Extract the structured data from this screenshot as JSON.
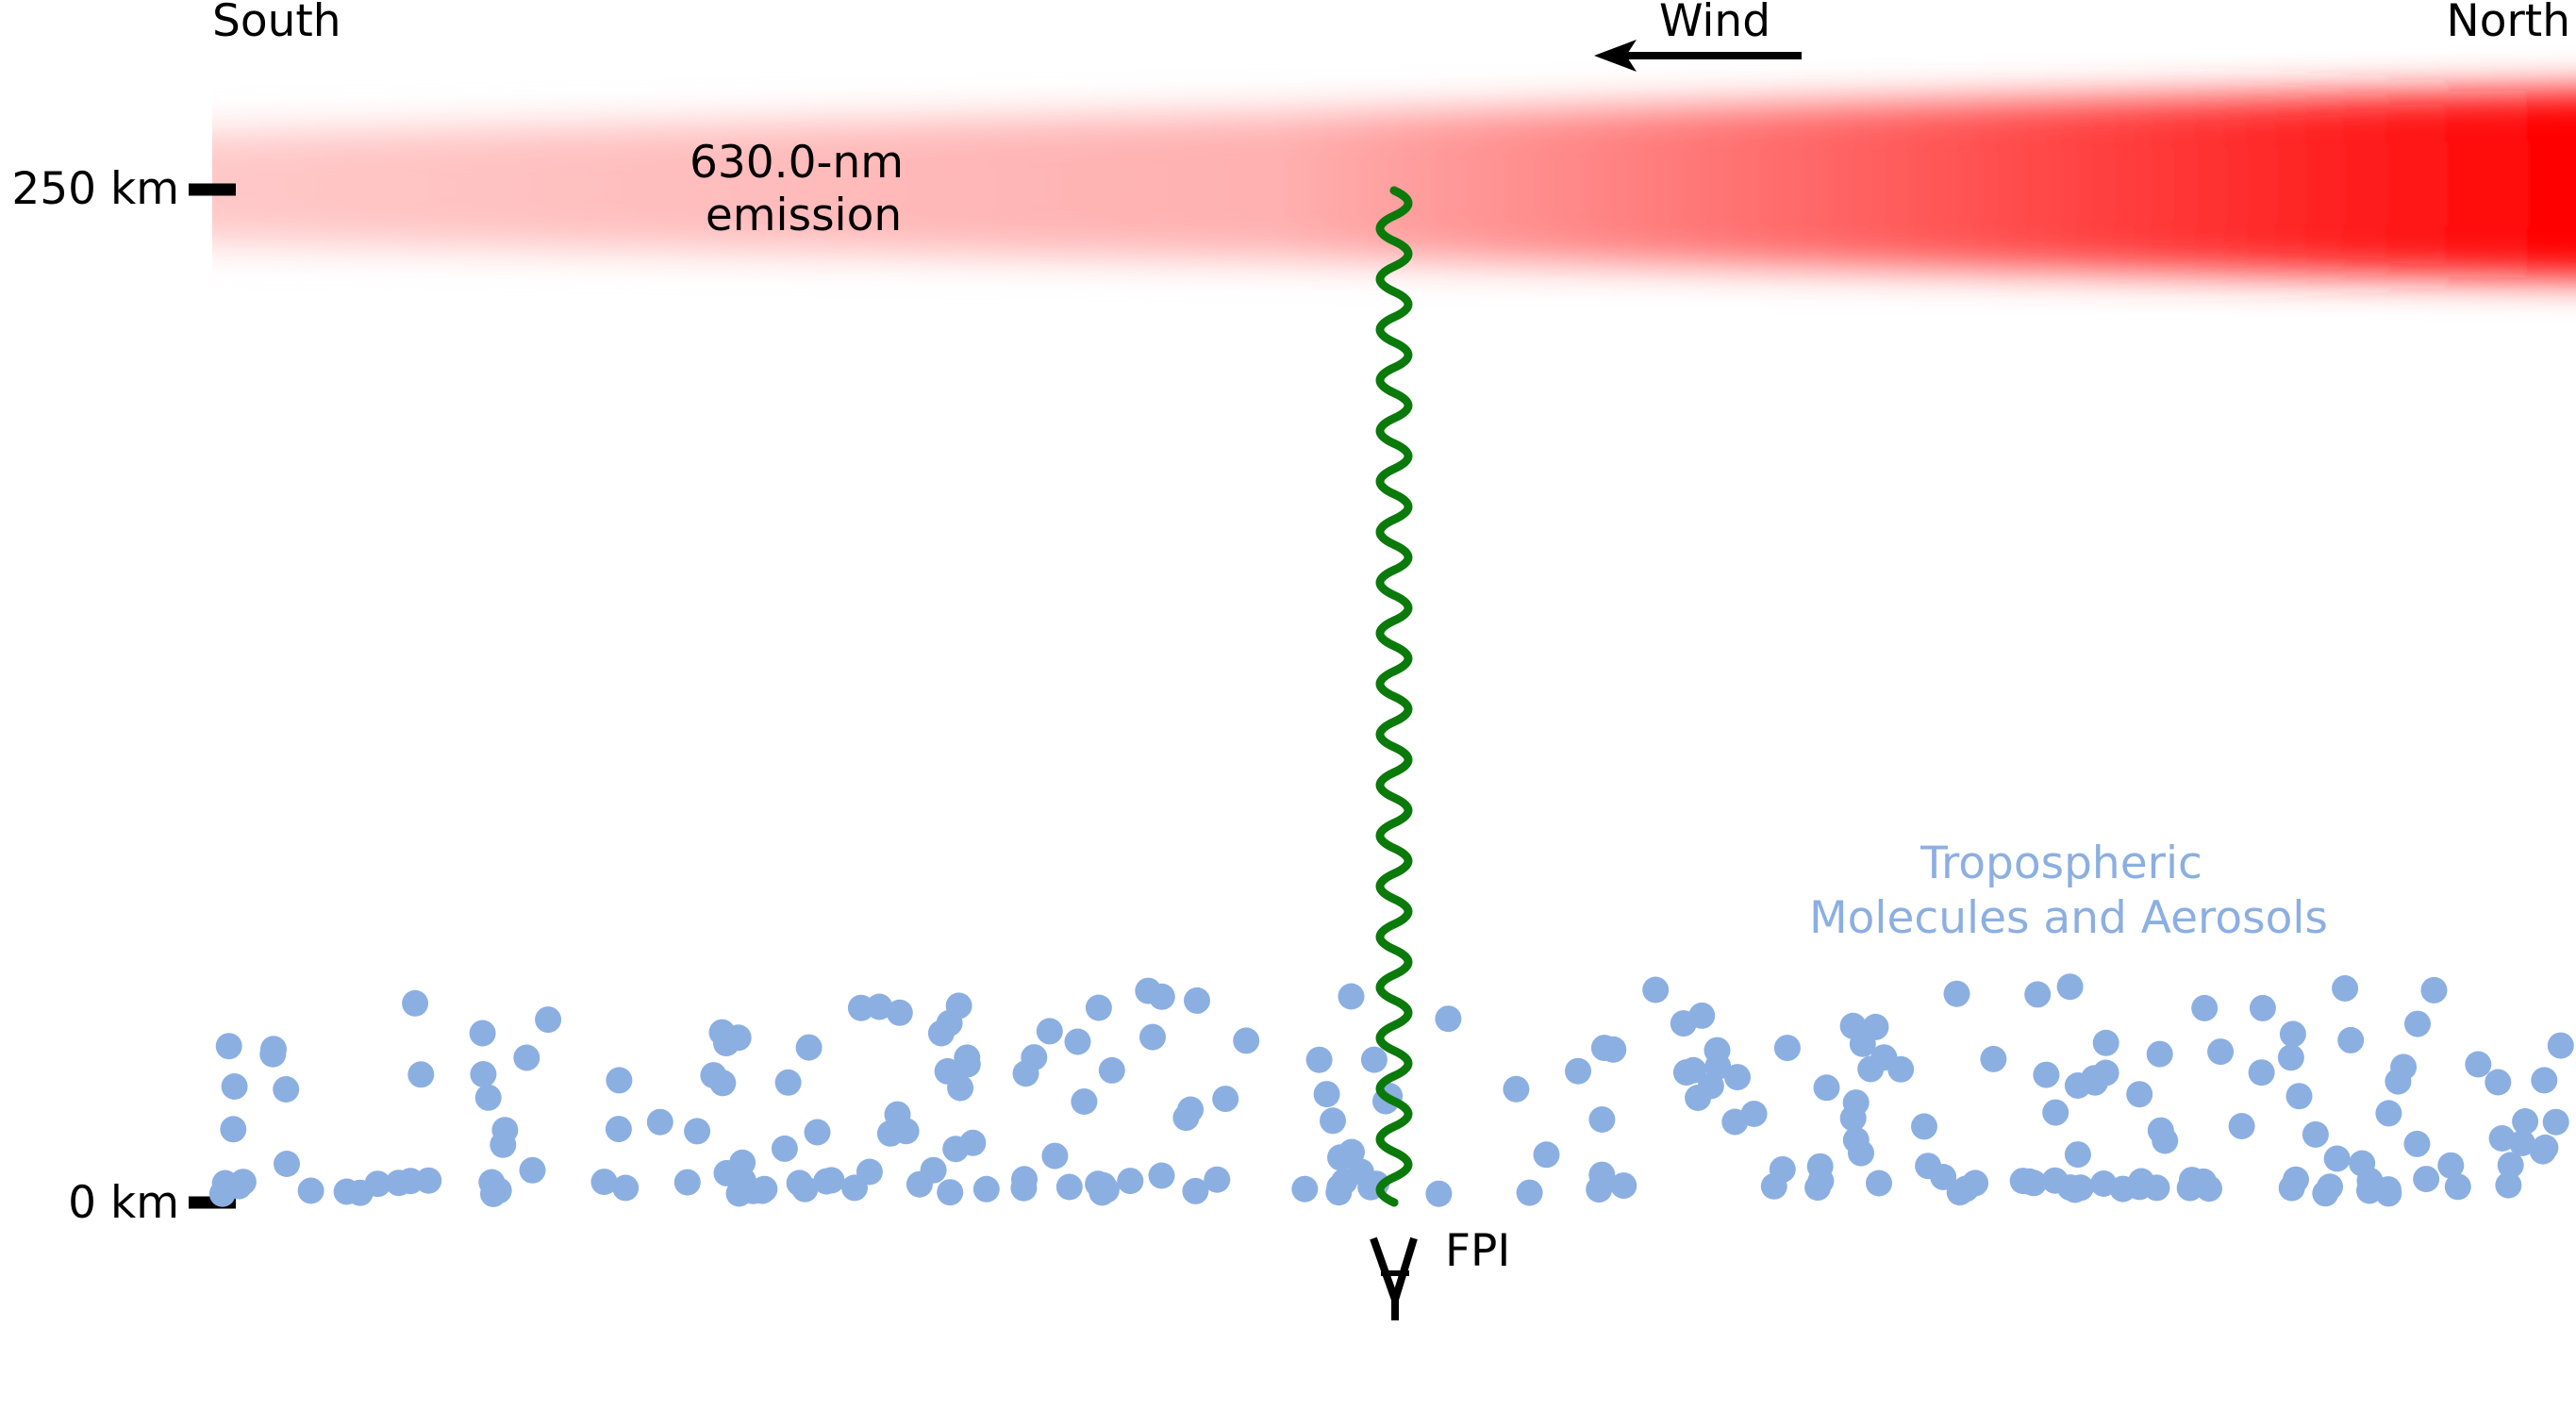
{
  "labels": {
    "south": "South",
    "north": "North",
    "wind": "Wind",
    "altitude_top": "250 km",
    "altitude_bottom": "0 km",
    "emission_line1": "630.0-nm",
    "emission_line2": "emission",
    "troposphere_line1": "Tropospheric",
    "troposphere_line2": "Molecules and Aerosols",
    "instrument": "FPI"
  },
  "colors": {
    "text": "#000000",
    "emission_peak": "#ff0000",
    "emission_faint": "#ffc8c8",
    "light_path": "#0a7a0a",
    "particles": "#8cafe2",
    "troposphere_label": "#8cafe2"
  },
  "icons": {
    "wind_direction": "arrow-left-icon",
    "instrument": "fpi-instrument-icon",
    "light_path": "wavy-line"
  }
}
